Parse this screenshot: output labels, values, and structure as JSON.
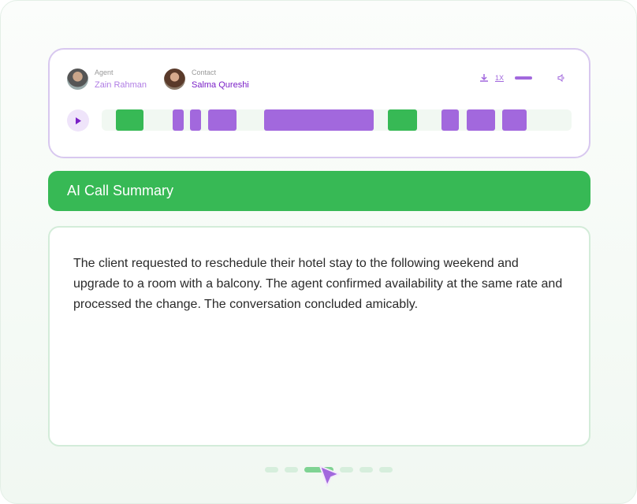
{
  "player": {
    "agent": {
      "role": "Agent",
      "name": "Zain Rahman",
      "color": "#b07de4"
    },
    "contact": {
      "role": "Contact",
      "name": "Salma Qureshi",
      "color": "#7a1fc7"
    },
    "speed": "1X",
    "volume": 1.0,
    "icons": [
      "download-icon",
      "volume-icon",
      "play-icon"
    ],
    "segments": [
      {
        "speaker": "green",
        "start": 0.03,
        "end": 0.089
      },
      {
        "speaker": "purple",
        "start": 0.151,
        "end": 0.174
      },
      {
        "speaker": "purple",
        "start": 0.188,
        "end": 0.211
      },
      {
        "speaker": "purple",
        "start": 0.227,
        "end": 0.287
      },
      {
        "speaker": "purple",
        "start": 0.346,
        "end": 0.579
      },
      {
        "speaker": "green",
        "start": 0.609,
        "end": 0.671
      },
      {
        "speaker": "purple",
        "start": 0.723,
        "end": 0.76
      },
      {
        "speaker": "purple",
        "start": 0.777,
        "end": 0.837
      },
      {
        "speaker": "purple",
        "start": 0.852,
        "end": 0.904
      }
    ]
  },
  "colors": {
    "green": "#37b955",
    "purple": "#a268dd"
  },
  "summary": {
    "title": "AI Call Summary",
    "text": "The client requested to reschedule their hotel stay to the following weekend and upgrade to a room with a balcony. The agent confirmed availability at the same rate and processed the change. The conversation concluded amicably."
  },
  "pagination": {
    "count": 6,
    "active": 2
  }
}
